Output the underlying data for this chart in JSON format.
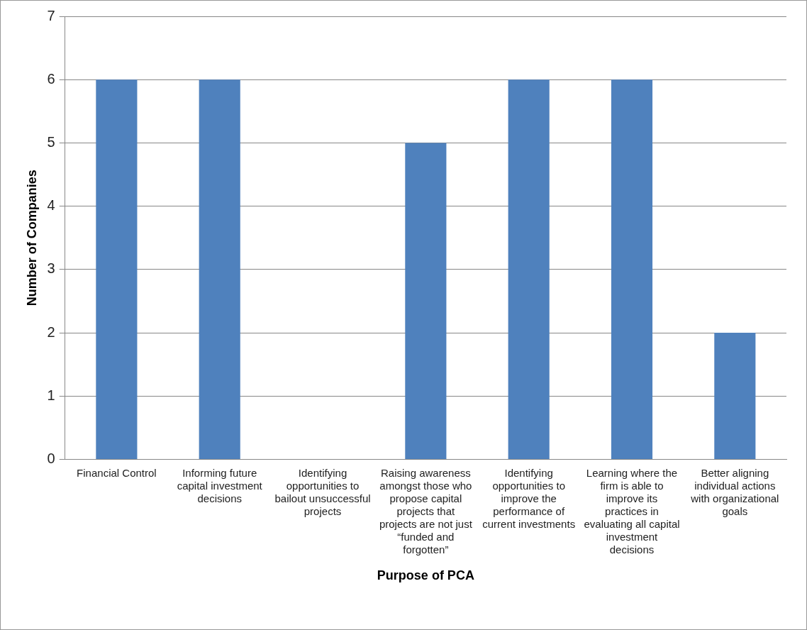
{
  "chart_data": {
    "type": "bar",
    "xlabel": "Purpose of PCA",
    "ylabel": "Number of Companies",
    "categories": [
      "Financial Control",
      "Informing future capital investment decisions",
      "Identifying opportunities to bailout unsuccessful projects",
      "Raising awareness amongst those who propose capital projects that projects are not just “funded and forgotten”",
      "Identifying opportunities to improve the performance of current investments",
      "Learning where the firm is able to improve its practices in evaluating all capital investment decisions",
      "Better aligning individual actions with organizational goals"
    ],
    "values": [
      6,
      6,
      0,
      5,
      6,
      6,
      2
    ],
    "color": "#4f81bd",
    "ylim": [
      0,
      7
    ],
    "yticks": [
      0,
      1,
      2,
      3,
      4,
      5,
      6,
      7
    ],
    "grid": "y",
    "legend": false
  }
}
